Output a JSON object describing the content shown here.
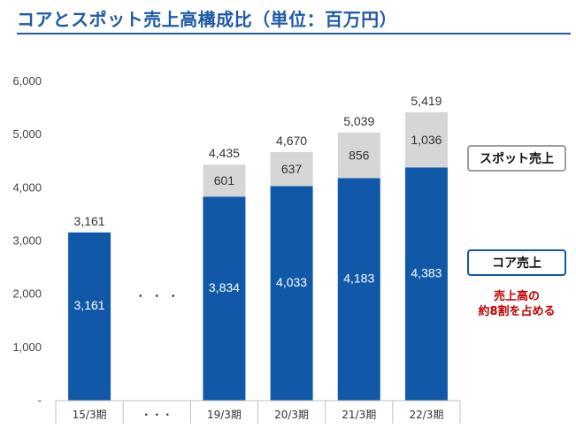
{
  "title": "コアとスポット売上高構成比（単位：百万円）",
  "chart_data": {
    "type": "bar",
    "stacked": true,
    "categories": [
      "15/3期",
      "・・・",
      "19/3期",
      "20/3期",
      "21/3期",
      "22/3期"
    ],
    "series": [
      {
        "name": "コア売上",
        "color": "#1159a8",
        "values": [
          3161,
          null,
          3834,
          4033,
          4183,
          4383
        ]
      },
      {
        "name": "スポット売上",
        "color": "#d6d6d6",
        "values": [
          0,
          null,
          601,
          637,
          856,
          1036
        ]
      }
    ],
    "totals": [
      3161,
      null,
      4435,
      4670,
      5039,
      5419
    ],
    "yticks": [
      "-",
      "1,000",
      "2,000",
      "3,000",
      "4,000",
      "5,000",
      "6,000"
    ],
    "ylim": [
      0,
      6000
    ],
    "gap_marker": "・  ・  ・",
    "value_labels": {
      "core": [
        "3,161",
        "",
        "3,834",
        "4,033",
        "4,183",
        "4,383"
      ],
      "spot": [
        "",
        "",
        "601",
        "637",
        "856",
        "1,036"
      ],
      "totals": [
        "3,161",
        "",
        "4,435",
        "4,670",
        "5,039",
        "5,419"
      ]
    },
    "legend": {
      "spot": "スポット売上",
      "core": "コア売上"
    },
    "note_lines": [
      "売上高の",
      "約8割を占める"
    ],
    "grid": false,
    "legend_position": "right"
  }
}
